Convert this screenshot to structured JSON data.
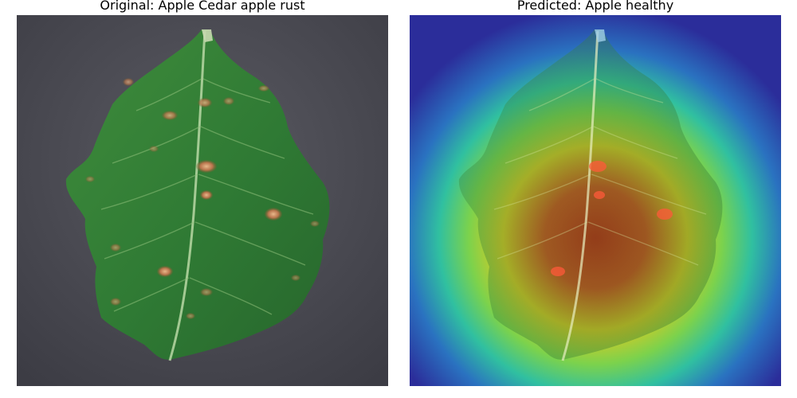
{
  "figure": {
    "panels": [
      {
        "title": "Original: Apple Cedar apple rust",
        "image": "apple-leaf-photo-with-rust-spots"
      },
      {
        "title": "Predicted: Apple healthy",
        "image": "grad-cam-heatmap-overlay-on-leaf"
      }
    ]
  },
  "colors": {
    "background_surface": "#4a4a52",
    "leaf_green": "#2f7a34",
    "leaf_vein": "#b9d8a4",
    "rust_spot": "#c9855a",
    "heatmap_cold": "#2b2d9a",
    "heatmap_mid": "#30c0a0",
    "heatmap_warm": "#e0e020",
    "heatmap_hot": "#d02010"
  }
}
